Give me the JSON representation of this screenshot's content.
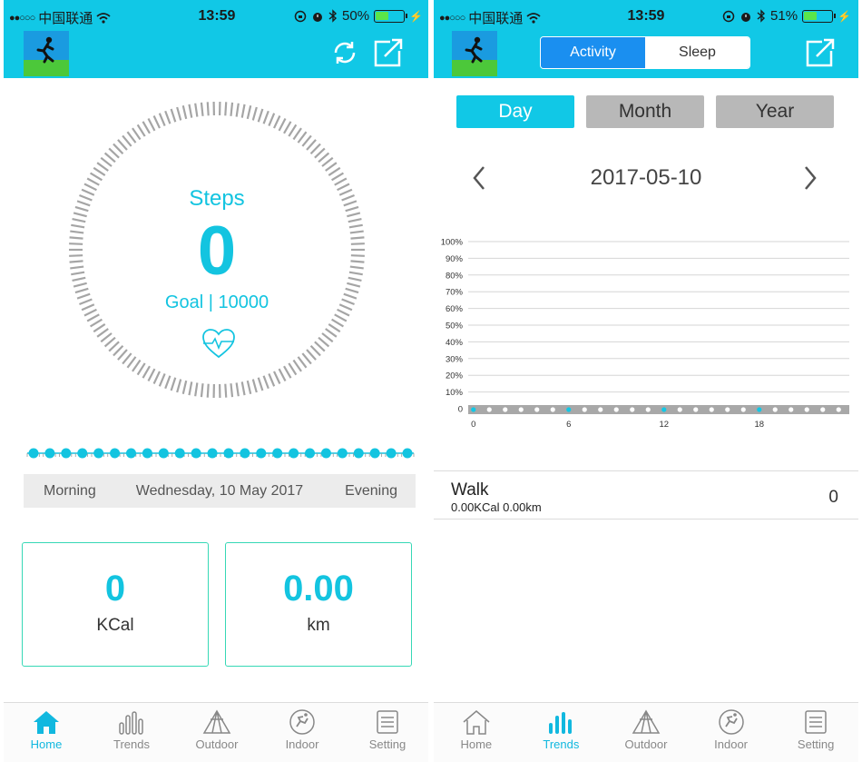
{
  "left": {
    "status": {
      "carrier": "中国联通",
      "time": "13:59",
      "battery": "50%",
      "battery_level": 0.5
    },
    "header": {
      "logo": "runner-logo",
      "icons": [
        "refresh-icon",
        "share-icon"
      ]
    },
    "steps": {
      "label": "Steps",
      "value": "0",
      "goal_line": "Goal | 10000",
      "icon": "heart-pulse-icon"
    },
    "timeline": {
      "dots": 24
    },
    "day_bar": {
      "left": "Morning",
      "center": "Wednesday, 10 May 2017",
      "right": "Evening"
    },
    "cards": [
      {
        "value": "0",
        "unit": "KCal"
      },
      {
        "value": "0.00",
        "unit": "km"
      }
    ],
    "tabs": [
      {
        "label": "Home",
        "icon": "home-icon",
        "active": true
      },
      {
        "label": "Trends",
        "icon": "bars-icon",
        "active": false
      },
      {
        "label": "Outdoor",
        "icon": "tent-icon",
        "active": false
      },
      {
        "label": "Indoor",
        "icon": "runner-circle-icon",
        "active": false
      },
      {
        "label": "Setting",
        "icon": "list-icon",
        "active": false
      }
    ]
  },
  "right": {
    "status": {
      "carrier": "中国联通",
      "time": "13:59",
      "battery": "51%",
      "battery_level": 0.51
    },
    "header": {
      "segments": [
        "Activity",
        "Sleep"
      ],
      "active_segment": "Activity",
      "icons": [
        "share-icon"
      ]
    },
    "ranges": [
      "Day",
      "Month",
      "Year"
    ],
    "active_range": "Day",
    "date": "2017-05-10",
    "chart_data": {
      "type": "bar",
      "y_tick_labels": [
        "100%",
        "90%",
        "80%",
        "70%",
        "60%",
        "50%",
        "40%",
        "30%",
        "20%",
        "10%",
        "0"
      ],
      "x_tick_labels": [
        "0",
        "6",
        "12",
        "18"
      ],
      "x": [
        0,
        1,
        2,
        3,
        4,
        5,
        6,
        7,
        8,
        9,
        10,
        11,
        12,
        13,
        14,
        15,
        16,
        17,
        18,
        19,
        20,
        21,
        22,
        23
      ],
      "values": [
        0,
        0,
        0,
        0,
        0,
        0,
        0,
        0,
        0,
        0,
        0,
        0,
        0,
        0,
        0,
        0,
        0,
        0,
        0,
        0,
        0,
        0,
        0,
        0
      ],
      "ylim": [
        0,
        100
      ],
      "grid": true
    },
    "walk": {
      "title": "Walk",
      "sub": "0.00KCal 0.00km",
      "count": "0"
    },
    "tabs": [
      {
        "label": "Home",
        "icon": "home-icon",
        "active": false
      },
      {
        "label": "Trends",
        "icon": "bars-icon",
        "active": true
      },
      {
        "label": "Outdoor",
        "icon": "tent-icon",
        "active": false
      },
      {
        "label": "Indoor",
        "icon": "runner-circle-icon",
        "active": false
      },
      {
        "label": "Setting",
        "icon": "list-icon",
        "active": false
      }
    ]
  },
  "colors": {
    "accent": "#11c8e6",
    "segment_active": "#1a8ff0",
    "card_border": "#36d8b6",
    "range_inactive": "#b8b8b8"
  }
}
